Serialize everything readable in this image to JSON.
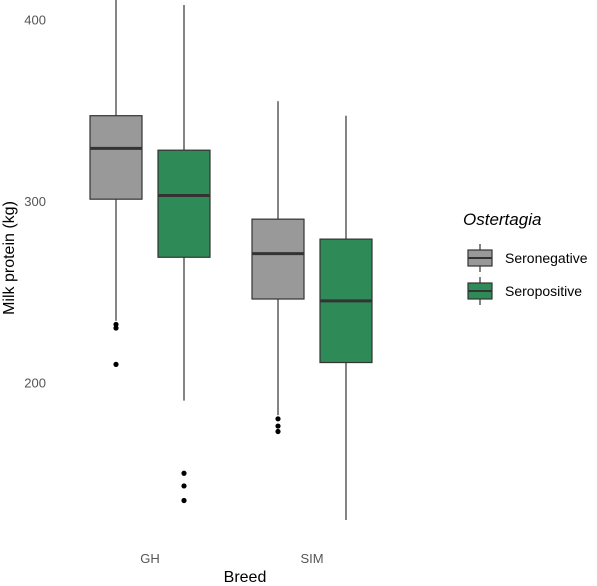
{
  "chart_data": {
    "type": "boxplot",
    "xlabel": "Breed",
    "ylabel": "Milk protein (kg)",
    "categories": [
      "GH",
      "SIM"
    ],
    "y_ticks": [
      200,
      300,
      400
    ],
    "ylim": [
      120,
      411
    ],
    "grid": false,
    "legend": {
      "title": "Ostertagia",
      "placement": "right"
    },
    "series": [
      {
        "name": "Seronegative",
        "color": "#999999",
        "boxes": [
          {
            "category": "GH",
            "whisker_low": 234,
            "q1": 301,
            "median": 329,
            "q3": 347,
            "whisker_high": 411,
            "outliers": [
              232,
              230,
              210
            ]
          },
          {
            "category": "SIM",
            "whisker_low": 182,
            "q1": 246,
            "median": 271,
            "q3": 290,
            "whisker_high": 355,
            "outliers": [
              180,
              176,
              173
            ]
          }
        ]
      },
      {
        "name": "Seropositive",
        "color": "#2e8b57",
        "boxes": [
          {
            "category": "GH",
            "whisker_low": 190,
            "q1": 269,
            "median": 303,
            "q3": 328,
            "whisker_high": 408,
            "outliers": [
              150,
              143,
              135
            ]
          },
          {
            "category": "SIM",
            "whisker_low": 124,
            "q1": 211,
            "median": 245,
            "q3": 279,
            "whisker_high": 347,
            "outliers": []
          }
        ]
      }
    ]
  }
}
